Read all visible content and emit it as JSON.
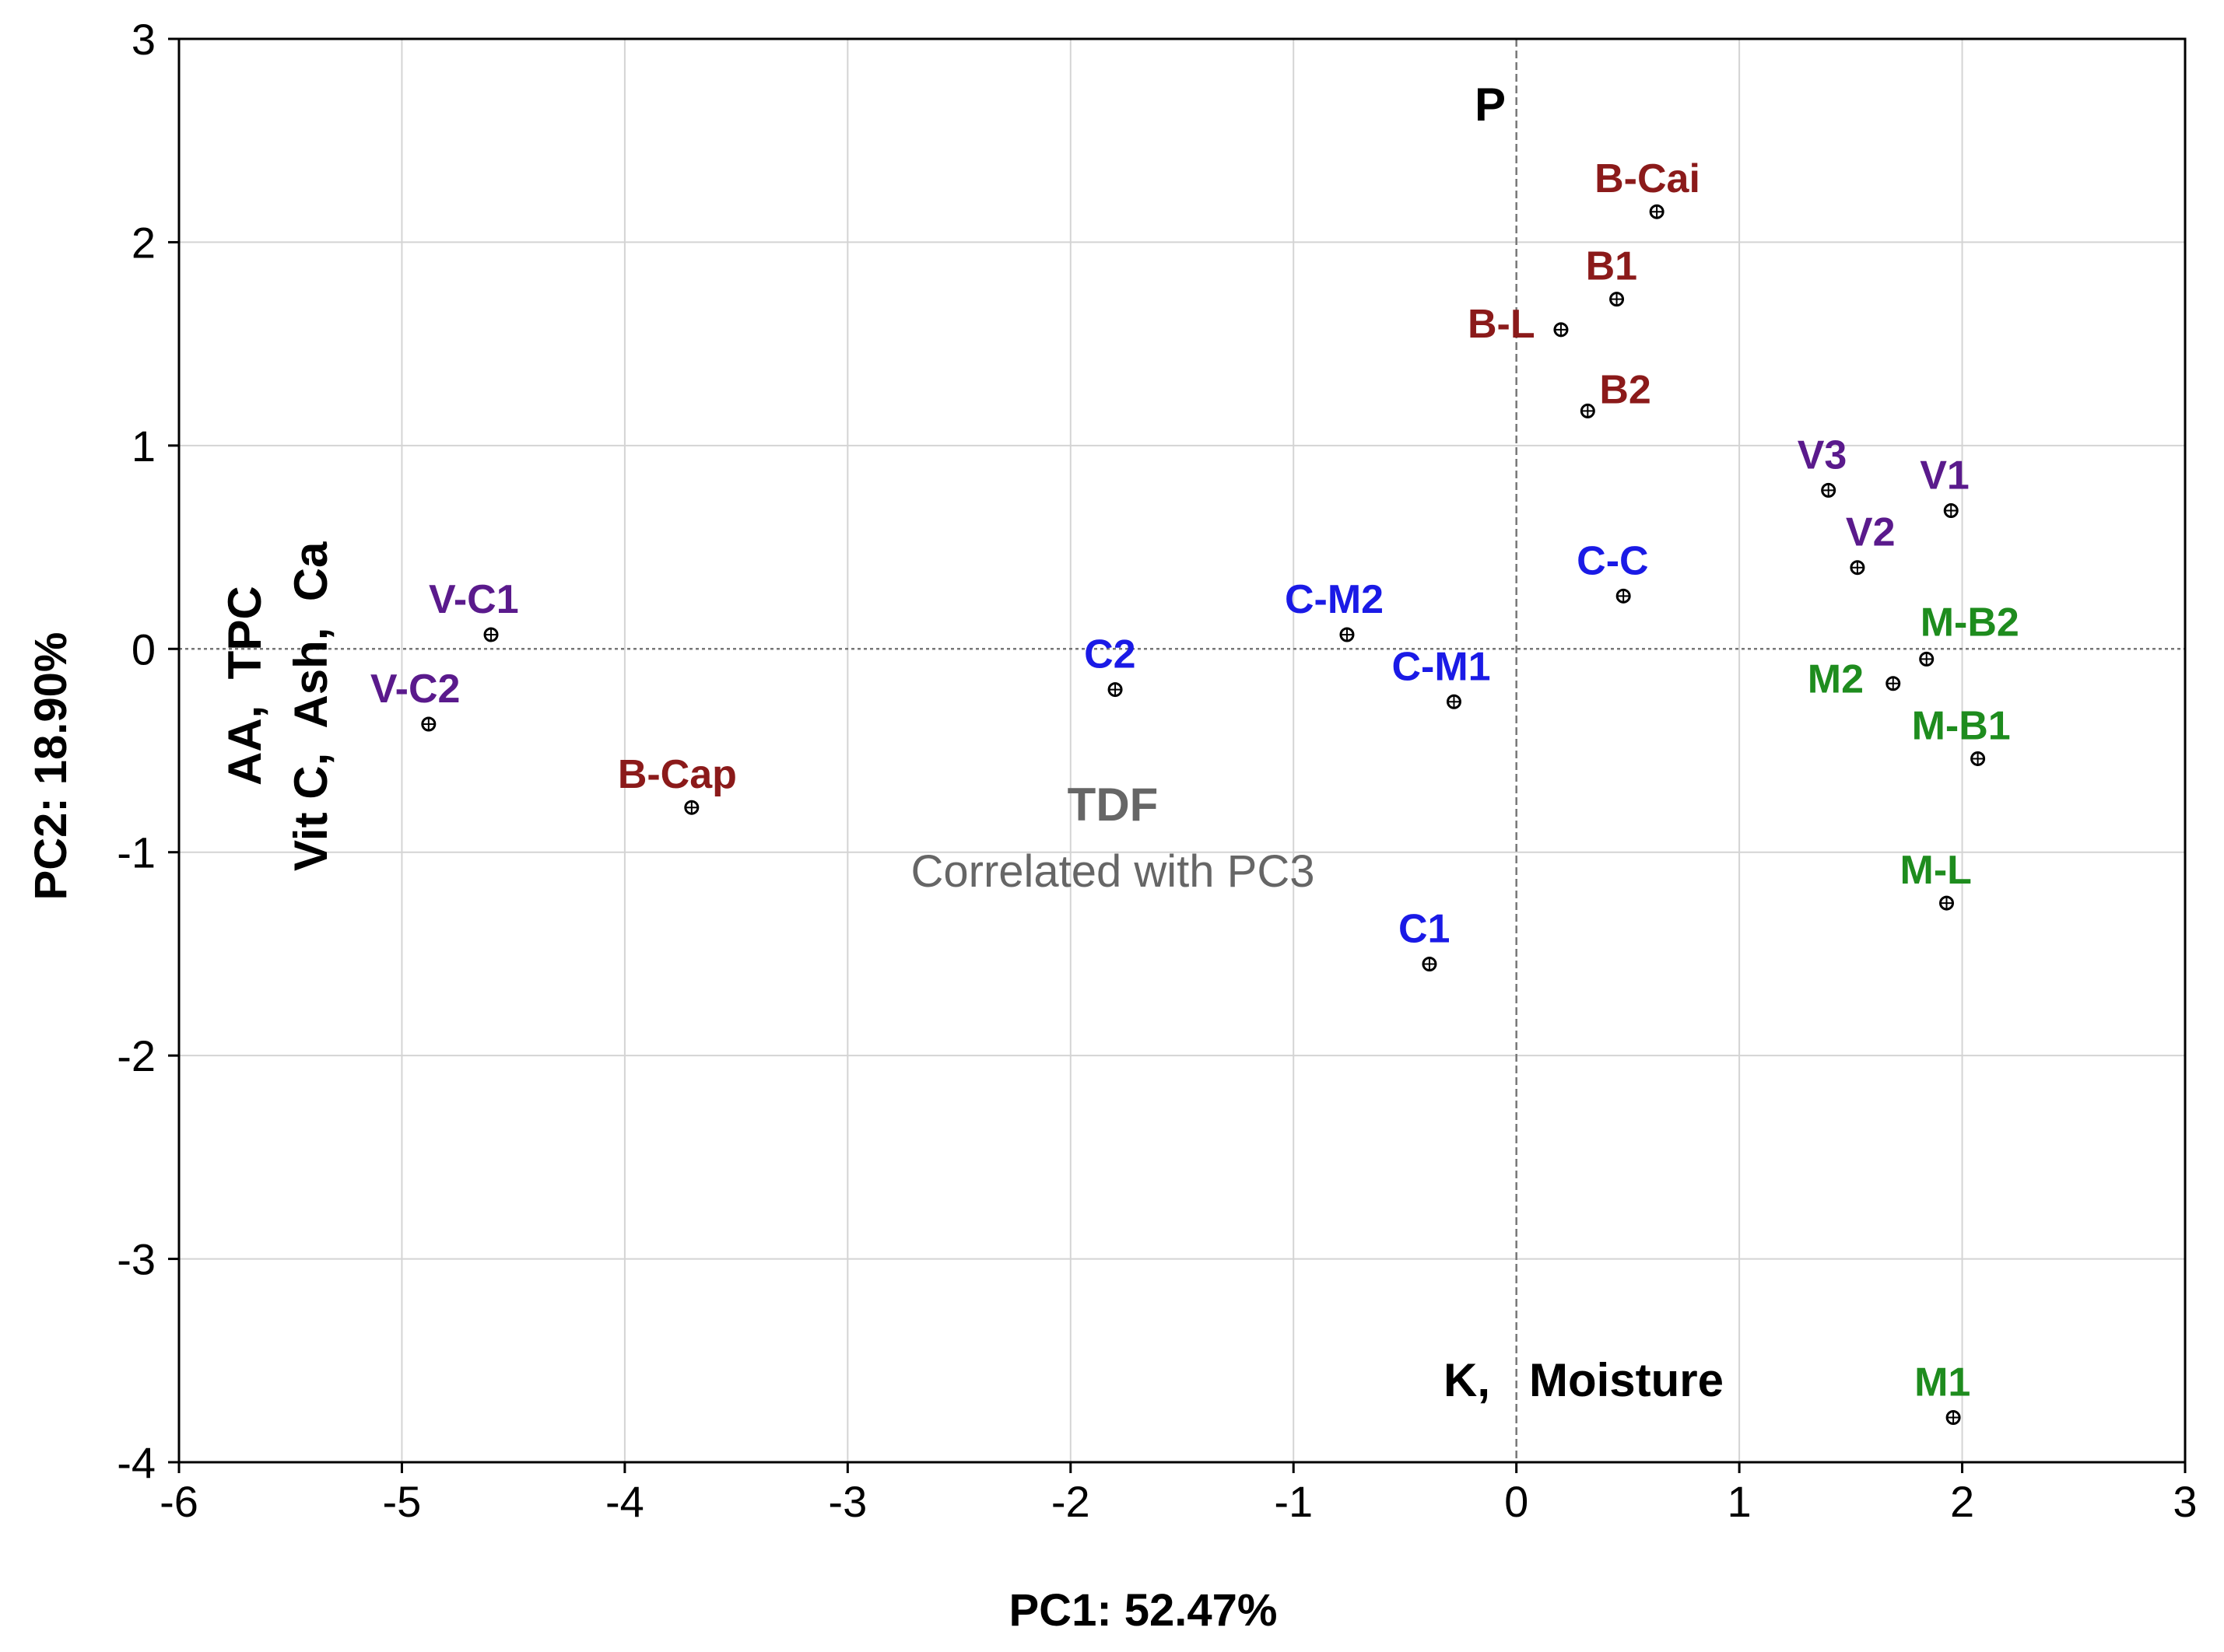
{
  "chart_data": {
    "type": "scatter",
    "title": "",
    "xlabel": "PC1: 52.47%",
    "ylabel": "PC2: 18.90%",
    "xlim": [
      -6,
      3
    ],
    "ylim": [
      -4,
      3
    ],
    "xticks": [
      -6,
      -5,
      -4,
      -3,
      -2,
      -1,
      0,
      1,
      2,
      3
    ],
    "yticks": [
      -4,
      -3,
      -2,
      -1,
      0,
      1,
      2,
      3
    ],
    "grid": true,
    "colors": {
      "group_B": "#8B1A1A",
      "group_V": "#5A1A8C",
      "group_C": "#1A1AE6",
      "group_M": "#1E8C1E"
    },
    "points": [
      {
        "label": "B-Cai",
        "x": 0.63,
        "y": 2.15,
        "group": "B"
      },
      {
        "label": "B1",
        "x": 0.45,
        "y": 1.72,
        "group": "B"
      },
      {
        "label": "B-L",
        "x": 0.2,
        "y": 1.57,
        "group": "B"
      },
      {
        "label": "B2",
        "x": 0.32,
        "y": 1.17,
        "group": "B"
      },
      {
        "label": "B-Cap",
        "x": -3.7,
        "y": -0.78,
        "group": "B"
      },
      {
        "label": "V3",
        "x": 1.4,
        "y": 0.78,
        "group": "V"
      },
      {
        "label": "V1",
        "x": 1.95,
        "y": 0.68,
        "group": "V"
      },
      {
        "label": "V2",
        "x": 1.53,
        "y": 0.4,
        "group": "V"
      },
      {
        "label": "V-C1",
        "x": -4.6,
        "y": 0.07,
        "group": "V"
      },
      {
        "label": "V-C2",
        "x": -4.88,
        "y": -0.37,
        "group": "V"
      },
      {
        "label": "C-C",
        "x": 0.48,
        "y": 0.26,
        "group": "C"
      },
      {
        "label": "C-M2",
        "x": -0.76,
        "y": 0.07,
        "group": "C"
      },
      {
        "label": "C2",
        "x": -1.8,
        "y": -0.2,
        "group": "C"
      },
      {
        "label": "C-M1",
        "x": -0.28,
        "y": -0.26,
        "group": "C"
      },
      {
        "label": "C1",
        "x": -0.39,
        "y": -1.55,
        "group": "C"
      },
      {
        "label": "M-B2",
        "x": 1.84,
        "y": -0.05,
        "group": "M"
      },
      {
        "label": "M2",
        "x": 1.69,
        "y": -0.17,
        "group": "M"
      },
      {
        "label": "M-B1",
        "x": 2.07,
        "y": -0.54,
        "group": "M"
      },
      {
        "label": "M-L",
        "x": 1.93,
        "y": -1.25,
        "group": "M"
      },
      {
        "label": "M1",
        "x": 1.96,
        "y": -3.78,
        "group": "M"
      }
    ],
    "annotations": {
      "variable_P": "P",
      "variable_k_moisture": "K,   Moisture",
      "variable_tdf": "TDF",
      "tdf_note": "Correlated with PC3",
      "left_col_1": "AA,  TPC",
      "left_col_2": "Vit C,  Ash,  Ca"
    }
  }
}
